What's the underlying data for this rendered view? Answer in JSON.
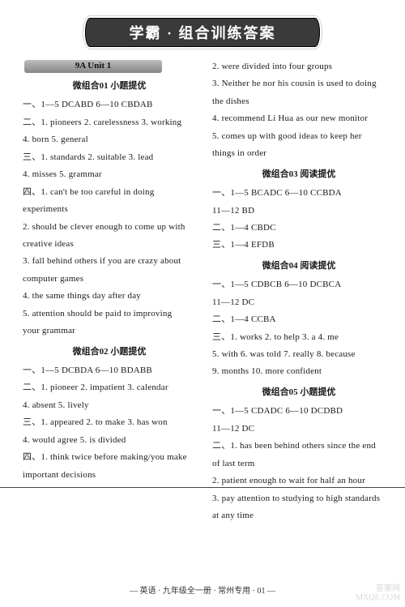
{
  "banner": "学霸 · 组合训练答案",
  "unit_bar": "9A  Unit 1",
  "left": {
    "t1": "微组合01  小题提优",
    "l1": "一、1—5  DCABD  6—10  CBDAB",
    "l2": "二、1. pioneers  2. carelessness  3. working",
    "l3": "4. born  5. general",
    "l4": "三、1. standards  2. suitable  3. lead",
    "l5": "4. misses  5. grammar",
    "l6a": "四、1. can't  be  too  careful  in  doing",
    "l6b": "    experiments",
    "l7a": "2. should be clever enough to come up with",
    "l7b": "   creative ideas",
    "l8a": "3. fall behind others if you are crazy about",
    "l8b": "   computer games",
    "l9": "4. the same things day after day",
    "l10a": "5. attention should be paid to improving",
    "l10b": "   your grammar",
    "t2": "微组合02  小题提优",
    "l11": "一、1—5  DCBDA  6—10  BDABB",
    "l12": "二、1. pioneer  2. impatient  3. calendar",
    "l13": "4. absent  5. lively",
    "l14": "三、1. appeared  2. to make  3. has won",
    "l15": "4. would agree  5. is divided",
    "l16a": "四、1. think twice before making/you make",
    "l16b": "   important decisions"
  },
  "right": {
    "r1": "2. were divided into four groups",
    "r2a": "3. Neither he nor his cousin is used to doing",
    "r2b": "   the dishes",
    "r3": "4. recommend Li Hua as our new monitor",
    "r4a": "5. comes up with good ideas to keep her",
    "r4b": "   things in order",
    "t3": "微组合03  阅读提优",
    "r5": "一、1—5  BCADC  6—10  CCBDA",
    "r6": "11—12  BD",
    "r7": "二、1—4  CBDC",
    "r8": "三、1—4  EFDB",
    "t4": "微组合04  阅读提优",
    "r9": "一、1—5  CDBCB  6—10  DCBCA",
    "r10": "11—12  DC",
    "r11": "二、1—4  CCBA",
    "r12": "三、1. works  2. to help  3. a  4. me",
    "r13": "5. with  6. was told  7. really  8. because",
    "r14": "9. months  10. more confident",
    "t5": "微组合05  小题提优",
    "r15": "一、1—5  CDADC  6—10  DCDBD",
    "r16": "11—12  DC",
    "r17a": "二、1. has been behind others since the end",
    "r17b": "   of last term",
    "r18": "2. patient enough to wait for half an hour",
    "r19a": "3. pay attention to studying to high standards",
    "r19b": "   at any time"
  },
  "footer": "— 英语 · 九年级全一册 · 常州专用 · 01 —",
  "watermark1": "答案网",
  "watermark2": "MXQE.COM"
}
